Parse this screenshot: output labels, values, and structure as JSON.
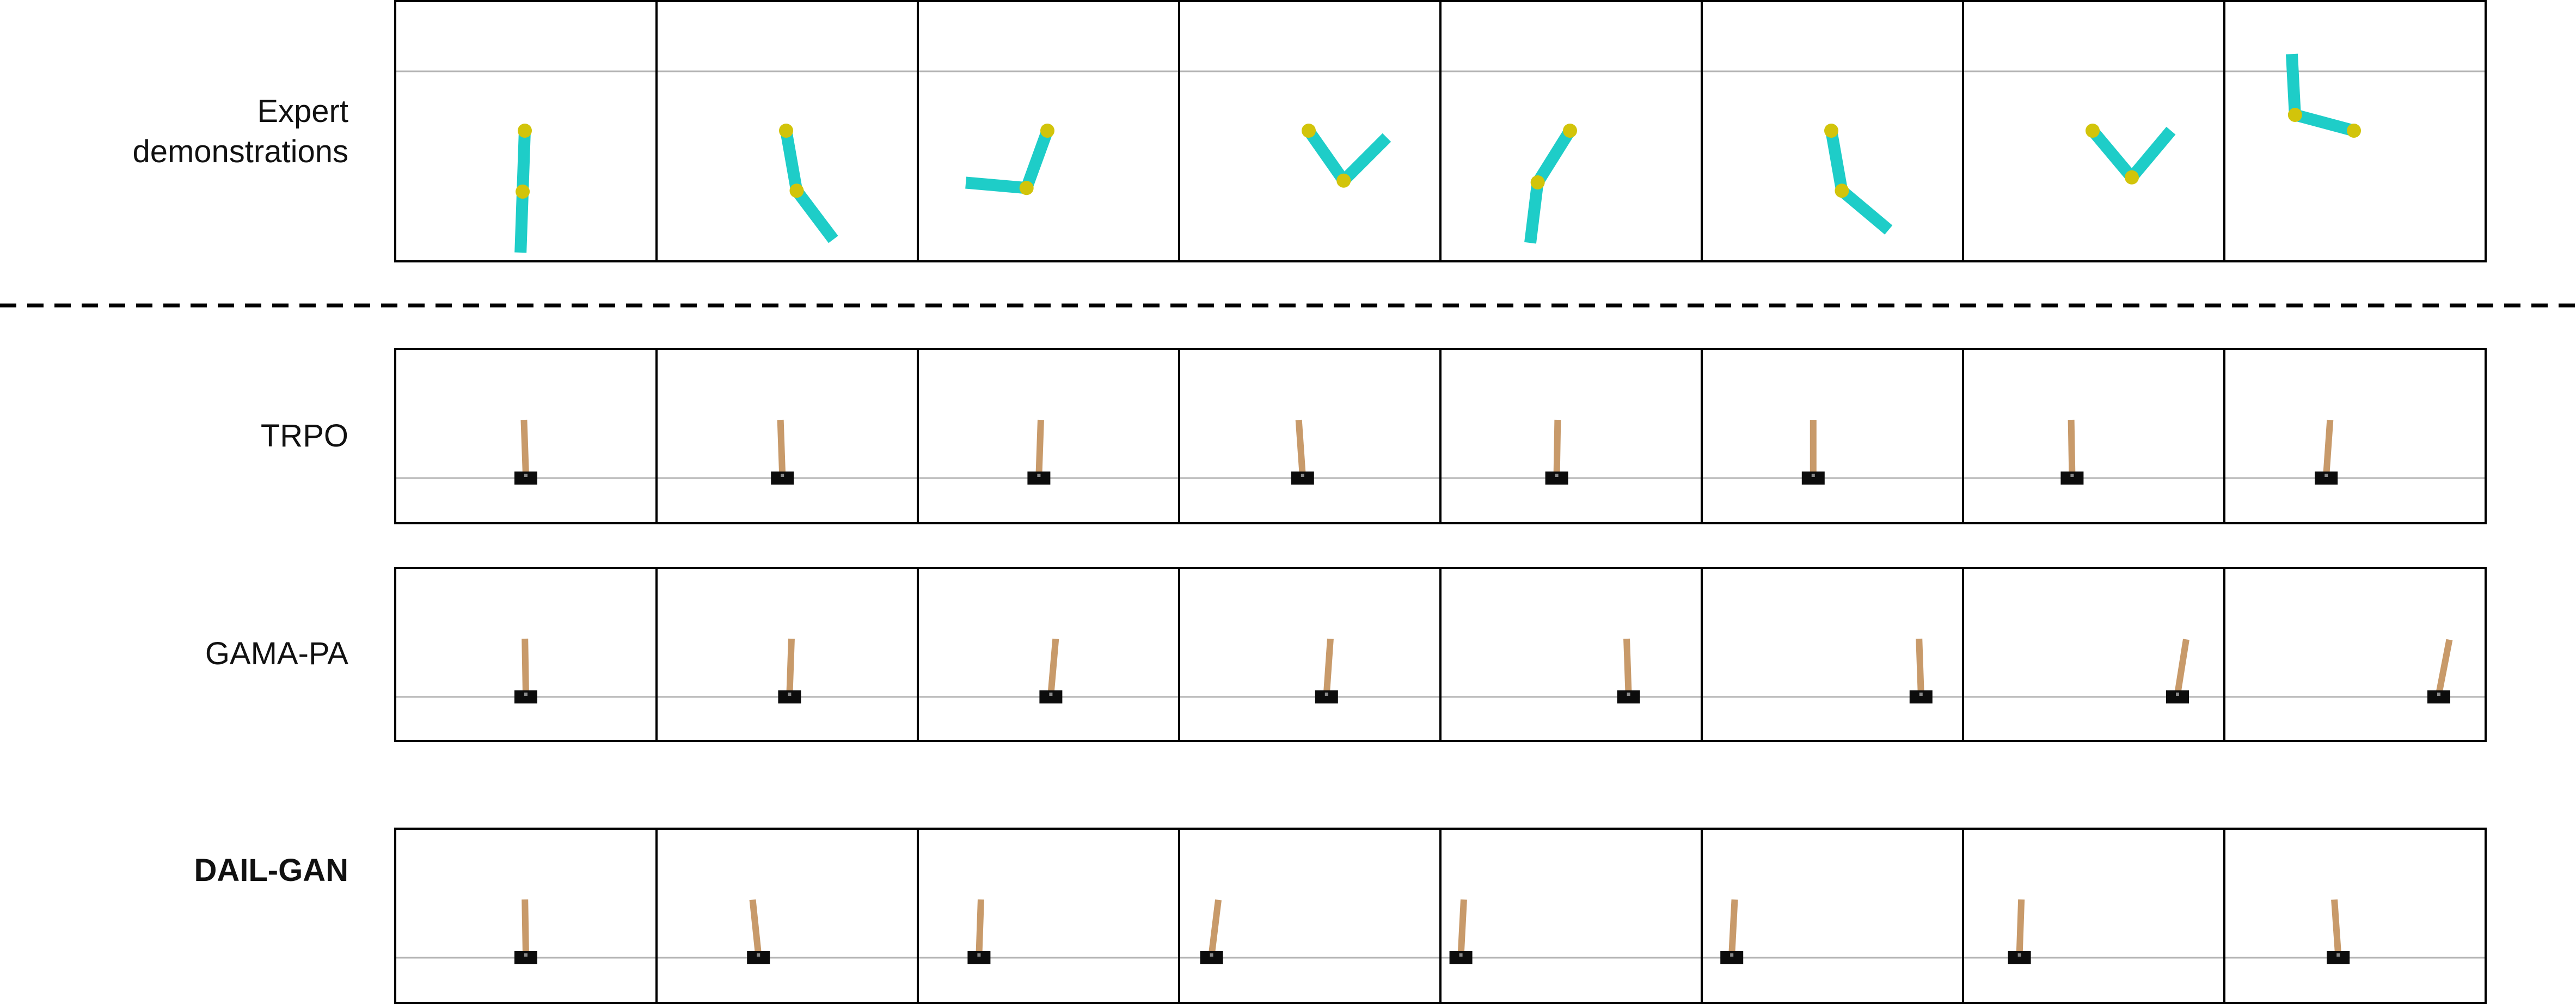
{
  "colors": {
    "reacher_link": "#1ecdc8",
    "reacher_joint": "#d2c40a",
    "pole": "#c89a6a",
    "cart": "#0c0c0c",
    "reference_line": "#b4b4b4",
    "frame": "#000000"
  },
  "rows": [
    {
      "label": "Expert\ndemonstrations",
      "bold": false,
      "env": "reacher",
      "frames": [
        {
          "arm_angle": 92,
          "elbow_angle": 0
        },
        {
          "arm_angle": 80,
          "elbow_angle": -27
        },
        {
          "arm_angle": 110,
          "elbow_angle": 75
        },
        {
          "arm_angle": 55,
          "elbow_angle": -100
        },
        {
          "arm_angle": 122,
          "elbow_angle": -25
        },
        {
          "arm_angle": 80,
          "elbow_angle": -40
        },
        {
          "arm_angle": 50,
          "elbow_angle": -100
        },
        {
          "arm_angle": 195,
          "elbow_angle": 72
        }
      ]
    },
    {
      "label": "TRPO",
      "bold": false,
      "env": "cartpole",
      "frames": [
        {
          "cart_pos": 0.5,
          "pole_angle": 2
        },
        {
          "cart_pos": 0.48,
          "pole_angle": 2
        },
        {
          "cart_pos": 0.46,
          "pole_angle": -2
        },
        {
          "cart_pos": 0.47,
          "pole_angle": 4
        },
        {
          "cart_pos": 0.44,
          "pole_angle": -1
        },
        {
          "cart_pos": 0.42,
          "pole_angle": 0
        },
        {
          "cart_pos": 0.41,
          "pole_angle": 1
        },
        {
          "cart_pos": 0.38,
          "pole_angle": -4
        }
      ]
    },
    {
      "label": "GAMA-PA",
      "bold": false,
      "env": "cartpole",
      "frames": [
        {
          "cart_pos": 0.5,
          "pole_angle": 1
        },
        {
          "cart_pos": 0.51,
          "pole_angle": -2
        },
        {
          "cart_pos": 0.51,
          "pole_angle": -5
        },
        {
          "cart_pos": 0.57,
          "pole_angle": -4
        },
        {
          "cart_pos": 0.74,
          "pole_angle": 2
        },
        {
          "cart_pos": 0.87,
          "pole_angle": 2
        },
        {
          "cart_pos": 0.85,
          "pole_angle": -9
        },
        {
          "cart_pos": 0.85,
          "pole_angle": -11
        }
      ]
    },
    {
      "label": "DAIL-GAN",
      "bold": true,
      "env": "cartpole",
      "frames": [
        {
          "cart_pos": 0.5,
          "pole_angle": 1
        },
        {
          "cart_pos": 0.38,
          "pole_angle": 6
        },
        {
          "cart_pos": 0.21,
          "pole_angle": -2
        },
        {
          "cart_pos": 0.09,
          "pole_angle": -7
        },
        {
          "cart_pos": 0.04,
          "pole_angle": -3
        },
        {
          "cart_pos": 0.08,
          "pole_angle": -3
        },
        {
          "cart_pos": 0.19,
          "pole_angle": -2
        },
        {
          "cart_pos": 0.43,
          "pole_angle": 4
        }
      ]
    }
  ]
}
